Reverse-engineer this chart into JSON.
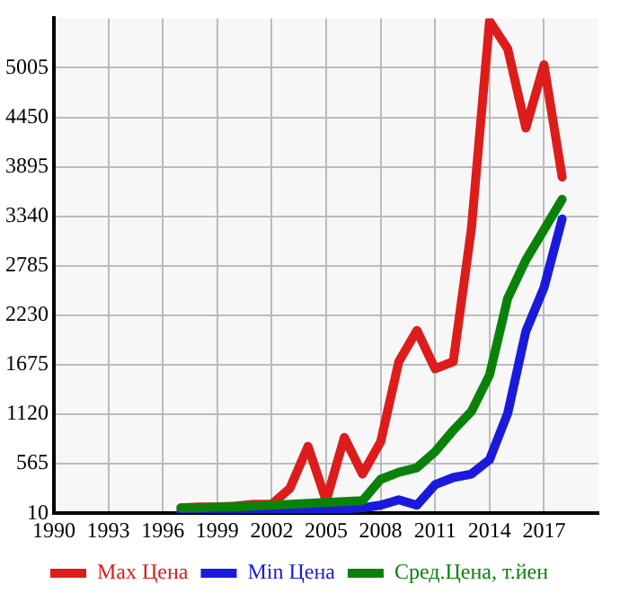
{
  "chart_data": {
    "type": "line",
    "x": [
      1997,
      1998,
      1999,
      2000,
      2001,
      2002,
      2003,
      2004,
      2005,
      2006,
      2007,
      2008,
      2009,
      2010,
      2011,
      2012,
      2013,
      2014,
      2015,
      2016,
      2017,
      2018
    ],
    "series": [
      {
        "name": "Max Цена",
        "color": "#dd1c1c",
        "values": [
          70,
          80,
          80,
          90,
          110,
          110,
          290,
          760,
          150,
          860,
          450,
          810,
          1710,
          2060,
          1630,
          1710,
          3200,
          5530,
          5220,
          4330,
          5040,
          3780
        ]
      },
      {
        "name": "Min Цена",
        "color": "#1a1adc",
        "values": [
          30,
          30,
          30,
          40,
          40,
          40,
          40,
          40,
          50,
          60,
          70,
          100,
          160,
          100,
          330,
          410,
          450,
          610,
          1130,
          2050,
          2540,
          3310
        ]
      },
      {
        "name": "Сред.Цена, т.йен",
        "color": "#0a820a",
        "values": [
          70,
          70,
          80,
          80,
          90,
          100,
          110,
          120,
          130,
          140,
          150,
          390,
          470,
          520,
          700,
          940,
          1150,
          1560,
          2420,
          2850,
          3190,
          3530
        ]
      }
    ],
    "xlim": [
      1990,
      2020
    ],
    "xticks": [
      1990,
      1993,
      1996,
      1999,
      2002,
      2005,
      2008,
      2011,
      2014,
      2017
    ],
    "ylim": [
      10,
      5560
    ],
    "yticks": [
      10,
      565,
      1120,
      1675,
      2230,
      2785,
      3340,
      3895,
      4450,
      5005
    ],
    "grid": true,
    "legend": "bottom",
    "marker": "none",
    "line_style": "solid"
  }
}
